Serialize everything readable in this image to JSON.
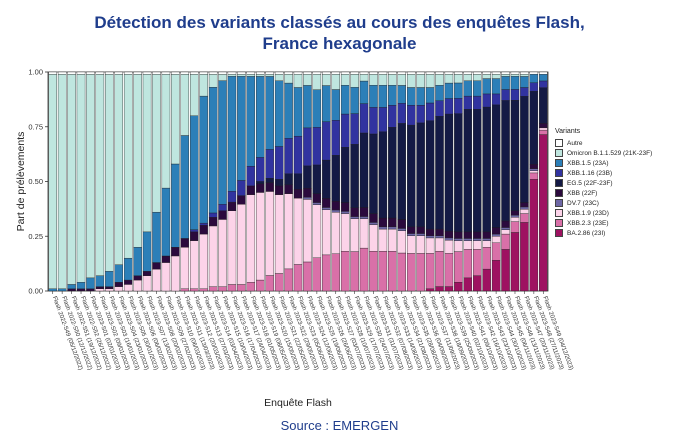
{
  "chart_data": {
    "type": "bar",
    "stacked": true,
    "title_line1": "Détection des variants classés au cours des enquêtes Flash,",
    "title_line2": "France hexagonale",
    "xlabel": "Enquête Flash",
    "ylabel": "Part de prélèvements",
    "ylim": [
      0,
      1
    ],
    "yticks": [
      "0.00",
      "0.25",
      "0.50",
      "0.75",
      "1.00"
    ],
    "legend_title": "Variants",
    "categories": [
      "Flash 2022-S49 (05/12/2022)",
      "Flash 2022-S50 (12/12/2022)",
      "Flash 2022-S51 (19/12/2022)",
      "Flash 2022-S52 (26/12/2022)",
      "Flash 2023-S01 (02/01/2023)",
      "Flash 2023-S02 (09/01/2023)",
      "Flash 2023-S03 (16/01/2023)",
      "Flash 2023-S04 (23/01/2023)",
      "Flash 2023-S05 (30/01/2023)",
      "Flash 2023-S06 (06/02/2023)",
      "Flash 2023-S07 (13/02/2023)",
      "Flash 2023-S08 (20/02/2023)",
      "Flash 2023-S09 (27/02/2023)",
      "Flash 2023-S10 (06/03/2023)",
      "Flash 2023-S11 (13/03/2023)",
      "Flash 2023-S12 (20/03/2023)",
      "Flash 2023-S13 (27/03/2023)",
      "Flash 2023-S14 (03/04/2023)",
      "Flash 2023-S15 (10/04/2023)",
      "Flash 2023-S16 (17/04/2023)",
      "Flash 2023-S17 (24/04/2023)",
      "Flash 2023-S18 (01/05/2023)",
      "Flash 2023-S19 (08/05/2023)",
      "Flash 2023-S20 (15/05/2023)",
      "Flash 2023-S21 (22/05/2023)",
      "Flash 2023-S22 (29/05/2023)",
      "Flash 2023-S23 (05/06/2023)",
      "Flash 2023-S24 (12/06/2023)",
      "Flash 2023-S25 (19/06/2023)",
      "Flash 2023-S26 (26/06/2023)",
      "Flash 2023-S27 (03/07/2023)",
      "Flash 2023-S28 (10/07/2023)",
      "Flash 2023-S29 (17/07/2023)",
      "Flash 2023-S30 (24/07/2023)",
      "Flash 2023-S31 (31/07/2023)",
      "Flash 2023-S32 (07/08/2023)",
      "Flash 2023-S33 (14/08/2023)",
      "Flash 2023-S34 (21/08/2023)",
      "Flash 2023-S35 (28/08/2023)",
      "Flash 2023-S36 (04/09/2023)",
      "Flash 2023-S37 (11/09/2023)",
      "Flash 2023-S38 (18/09/2023)",
      "Flash 2023-S39 (25/09/2023)",
      "Flash 2023-S40 (02/10/2023)",
      "Flash 2023-S41 (09/10/2023)",
      "Flash 2023-S42 (16/10/2023)",
      "Flash 2023-S43 (23/10/2023)",
      "Flash 2023-S44 (30/10/2023)",
      "Flash 2023-S45 (06/11/2023)",
      "Flash 2023-S46 (13/11/2023)",
      "Flash 2023-S47 (20/11/2023)",
      "Flash 2023-S48 (27/11/2023)",
      "Flash 2023-S49 (04/12/2023)"
    ],
    "series": [
      {
        "name": "BA.2.86 (23I)",
        "color": "#9e1261",
        "values": [
          0,
          0,
          0,
          0,
          0,
          0,
          0,
          0,
          0,
          0,
          0,
          0,
          0,
          0,
          0,
          0,
          0,
          0,
          0,
          0,
          0,
          0,
          0,
          0,
          0,
          0,
          0,
          0,
          0,
          0,
          0,
          0,
          0,
          0,
          0,
          0,
          0,
          0,
          0,
          0,
          0.01,
          0.02,
          0.02,
          0.04,
          0.06,
          0.07,
          0.1,
          0.14,
          0.19,
          0.27,
          0.31,
          0.52,
          0.7
        ]
      },
      {
        "name": "XBB.2.3 (23E)",
        "color": "#d970a8",
        "values": [
          0,
          0,
          0,
          0,
          0,
          0,
          0,
          0,
          0,
          0,
          0,
          0,
          0,
          0,
          0.01,
          0.01,
          0.01,
          0.02,
          0.02,
          0.03,
          0.03,
          0.04,
          0.05,
          0.07,
          0.08,
          0.1,
          0.12,
          0.13,
          0.15,
          0.16,
          0.17,
          0.18,
          0.18,
          0.19,
          0.18,
          0.18,
          0.18,
          0.17,
          0.17,
          0.17,
          0.16,
          0.16,
          0.15,
          0.14,
          0.13,
          0.12,
          0.1,
          0.08,
          0.07,
          0.05,
          0.04,
          0.03,
          0.02
        ]
      },
      {
        "name": "XBB.1.9 (23D)",
        "color": "#fcd3e9",
        "values": [
          0,
          0,
          0,
          0,
          0,
          0.01,
          0.01,
          0.02,
          0.03,
          0.05,
          0.07,
          0.1,
          0.13,
          0.16,
          0.19,
          0.22,
          0.25,
          0.28,
          0.31,
          0.34,
          0.37,
          0.4,
          0.4,
          0.38,
          0.36,
          0.34,
          0.3,
          0.28,
          0.24,
          0.2,
          0.19,
          0.17,
          0.15,
          0.13,
          0.12,
          0.1,
          0.1,
          0.1,
          0.08,
          0.08,
          0.07,
          0.06,
          0.06,
          0.05,
          0.04,
          0.04,
          0.03,
          0.03,
          0.02,
          0.02,
          0.02,
          0.01,
          0.01
        ]
      },
      {
        "name": "DV.7 (23C)",
        "color": "#6e67a6",
        "values": [
          0,
          0,
          0,
          0,
          0,
          0,
          0,
          0,
          0,
          0,
          0,
          0,
          0,
          0,
          0,
          0,
          0,
          0,
          0,
          0,
          0,
          0,
          0,
          0,
          0,
          0,
          0,
          0.01,
          0.01,
          0.01,
          0.01,
          0.01,
          0.01,
          0.01,
          0.01,
          0.01,
          0.01,
          0.01,
          0.01,
          0.01,
          0.01,
          0.01,
          0.01,
          0.01,
          0.01,
          0.01,
          0.01,
          0.01,
          0.01,
          0.01,
          0.01,
          0.01,
          0
        ]
      },
      {
        "name": "XBB (22F)",
        "color": "#2b0a3d",
        "values": [
          0,
          0,
          0.01,
          0.01,
          0.01,
          0.01,
          0.01,
          0.02,
          0.02,
          0.02,
          0.02,
          0.03,
          0.03,
          0.04,
          0.04,
          0.04,
          0.04,
          0.04,
          0.04,
          0.04,
          0.04,
          0.04,
          0.04,
          0.04,
          0.04,
          0.04,
          0.04,
          0.04,
          0.04,
          0.04,
          0.04,
          0.04,
          0.04,
          0.04,
          0.04,
          0.04,
          0.04,
          0.04,
          0.03,
          0.03,
          0.03,
          0.03,
          0.03,
          0.03,
          0.03,
          0.03,
          0.03,
          0.03,
          0.03,
          0.02,
          0.02,
          0.02,
          0.02
        ]
      },
      {
        "name": "EG.5 (22F-23F)",
        "color": "#141a45",
        "values": [
          0,
          0,
          0,
          0,
          0,
          0,
          0,
          0,
          0,
          0,
          0,
          0,
          0,
          0,
          0,
          0,
          0,
          0,
          0,
          0,
          0,
          0,
          0.01,
          0.02,
          0.03,
          0.05,
          0.07,
          0.1,
          0.13,
          0.17,
          0.21,
          0.25,
          0.29,
          0.33,
          0.36,
          0.39,
          0.41,
          0.43,
          0.46,
          0.47,
          0.49,
          0.51,
          0.53,
          0.54,
          0.56,
          0.56,
          0.57,
          0.56,
          0.55,
          0.51,
          0.48,
          0.34,
          0.16
        ]
      },
      {
        "name": "XBB.1.16 (23B)",
        "color": "#3133a0",
        "values": [
          0,
          0,
          0,
          0,
          0,
          0,
          0,
          0,
          0,
          0,
          0,
          0,
          0,
          0,
          0,
          0.01,
          0.01,
          0.02,
          0.03,
          0.05,
          0.07,
          0.09,
          0.11,
          0.13,
          0.15,
          0.16,
          0.17,
          0.17,
          0.17,
          0.17,
          0.16,
          0.15,
          0.14,
          0.13,
          0.12,
          0.11,
          0.1,
          0.09,
          0.09,
          0.08,
          0.08,
          0.07,
          0.07,
          0.07,
          0.06,
          0.06,
          0.06,
          0.05,
          0.05,
          0.05,
          0.04,
          0.04,
          0.03
        ]
      },
      {
        "name": "XBB.1.5 (23A)",
        "color": "#2c7fb8",
        "values": [
          0.01,
          0.01,
          0.02,
          0.03,
          0.05,
          0.05,
          0.07,
          0.08,
          0.1,
          0.13,
          0.18,
          0.23,
          0.31,
          0.38,
          0.47,
          0.52,
          0.58,
          0.58,
          0.57,
          0.53,
          0.48,
          0.41,
          0.37,
          0.33,
          0.3,
          0.25,
          0.22,
          0.19,
          0.17,
          0.16,
          0.14,
          0.13,
          0.12,
          0.1,
          0.1,
          0.1,
          0.09,
          0.08,
          0.08,
          0.08,
          0.07,
          0.07,
          0.07,
          0.07,
          0.07,
          0.07,
          0.07,
          0.07,
          0.06,
          0.06,
          0.05,
          0.04,
          0.03
        ]
      },
      {
        "name": "Omicron B.1.1.529 (21K-23F)",
        "color": "#bfe6df",
        "values": [
          0.98,
          0.98,
          0.96,
          0.95,
          0.93,
          0.92,
          0.9,
          0.87,
          0.84,
          0.79,
          0.72,
          0.63,
          0.52,
          0.41,
          0.28,
          0.19,
          0.1,
          0.06,
          0.03,
          0.01,
          0.01,
          0.01,
          0.01,
          0.01,
          0.03,
          0.04,
          0.06,
          0.05,
          0.07,
          0.05,
          0.07,
          0.05,
          0.06,
          0.03,
          0.05,
          0.05,
          0.05,
          0.05,
          0.06,
          0.06,
          0.06,
          0.05,
          0.04,
          0.04,
          0.03,
          0.03,
          0.02,
          0.02,
          0.01,
          0.01,
          0.01,
          0,
          0
        ]
      },
      {
        "name": "Autre",
        "color": "#ffffff",
        "values": [
          0.01,
          0.01,
          0.01,
          0.01,
          0.01,
          0.01,
          0.01,
          0.01,
          0.01,
          0.01,
          0.01,
          0.01,
          0.01,
          0.01,
          0.01,
          0.01,
          0.01,
          0.01,
          0.01,
          0.01,
          0.01,
          0.01,
          0.01,
          0.01,
          0.01,
          0.01,
          0.01,
          0.01,
          0.01,
          0.01,
          0.01,
          0.01,
          0.01,
          0.01,
          0.01,
          0.01,
          0.01,
          0.01,
          0.01,
          0.01,
          0.01,
          0.01,
          0.01,
          0.01,
          0.01,
          0.01,
          0.01,
          0.01,
          0.01,
          0.01,
          0.01,
          0.01,
          0.01
        ]
      }
    ],
    "legend_order": [
      "Autre",
      "Omicron B.1.1.529 (21K-23F)",
      "XBB.1.5 (23A)",
      "XBB.1.16 (23B)",
      "EG.5 (22F-23F)",
      "XBB (22F)",
      "DV.7 (23C)",
      "XBB.1.9 (23D)",
      "XBB.2.3 (23E)",
      "BA.2.86 (23I)"
    ]
  },
  "source": "Source : EMERGEN"
}
